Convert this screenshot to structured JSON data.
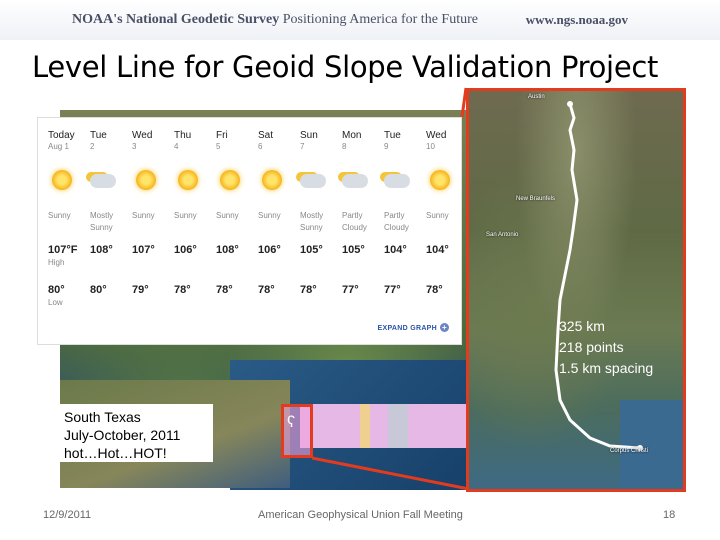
{
  "header": {
    "org": "NOAA's National Geodetic Survey",
    "tagline": "Positioning America for the Future",
    "url": "www.ngs.noaa.gov"
  },
  "title": "Level Line for Geoid Slope Validation Project",
  "weather": {
    "high_label": "High",
    "low_label": "Low",
    "expand_label": "EXPAND GRAPH",
    "days": [
      {
        "day": "Today",
        "date": "Aug 1",
        "icon": "sun-icon",
        "cond": "Sunny",
        "high": "107°F",
        "low": "80°"
      },
      {
        "day": "Tue",
        "date": "2",
        "icon": "partly-cloudy-icon",
        "cond": "Mostly Sunny",
        "high": "108°",
        "low": "80°"
      },
      {
        "day": "Wed",
        "date": "3",
        "icon": "sun-icon",
        "cond": "Sunny",
        "high": "107°",
        "low": "79°"
      },
      {
        "day": "Thu",
        "date": "4",
        "icon": "sun-icon",
        "cond": "Sunny",
        "high": "106°",
        "low": "78°"
      },
      {
        "day": "Fri",
        "date": "5",
        "icon": "sun-icon",
        "cond": "Sunny",
        "high": "108°",
        "low": "78°"
      },
      {
        "day": "Sat",
        "date": "6",
        "icon": "sun-icon",
        "cond": "Sunny",
        "high": "106°",
        "low": "78°"
      },
      {
        "day": "Sun",
        "date": "7",
        "icon": "partly-cloudy-icon",
        "cond": "Mostly Sunny",
        "high": "105°",
        "low": "78°"
      },
      {
        "day": "Mon",
        "date": "8",
        "icon": "partly-cloudy-icon",
        "cond": "Partly Cloudy",
        "high": "105°",
        "low": "77°"
      },
      {
        "day": "Tue",
        "date": "9",
        "icon": "partly-cloudy-icon",
        "cond": "Partly Cloudy",
        "high": "104°",
        "low": "77°"
      },
      {
        "day": "Wed",
        "date": "10",
        "icon": "sun-icon",
        "cond": "Sunny",
        "high": "104°",
        "low": "78°"
      }
    ]
  },
  "map_labels": {
    "austin": "Austin",
    "new_braunfels": "New Braunfels",
    "san_antonio": "San Antonio",
    "corpus_christi": "Corpus Christi"
  },
  "info": {
    "length": "325 km",
    "points": "218 points",
    "spacing": "1.5 km spacing"
  },
  "caption": {
    "line1": "South  Texas",
    "line2": "July-October, 2011",
    "line3": "hot…Hot…HOT!"
  },
  "footer": {
    "date": "12/9/2011",
    "event": "American Geophysical Union Fall Meeting",
    "page": "18"
  },
  "colors": {
    "highlight": "#e33b1e",
    "overlay": "#e6b8e6",
    "route": "#ffffff"
  }
}
